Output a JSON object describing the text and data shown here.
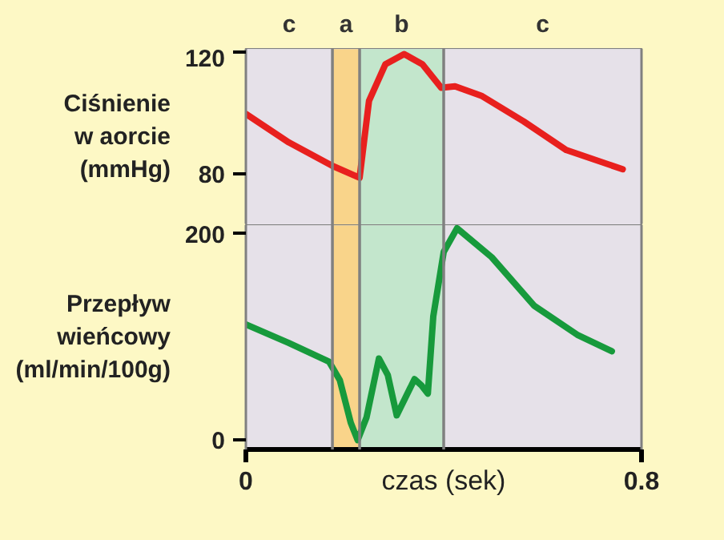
{
  "chart_data": [
    {
      "type": "line",
      "ylabel": "Ciśnienie\nw aorcie\n(mmHg)",
      "xlim": [
        0,
        0.8
      ],
      "ylim": [
        63,
        121
      ],
      "yticks": [
        80,
        120
      ],
      "tick_labels": "y",
      "series": [
        {
          "color": "#e8201e",
          "x": [
            0,
            0.087,
            0.175,
            0.23,
            0.249,
            0.282,
            0.32,
            0.357,
            0.395,
            0.423,
            0.476,
            0.562,
            0.648,
            0.762
          ],
          "values": [
            99.6,
            90.2,
            82.5,
            78.6,
            103.9,
            115.9,
            119.3,
            115.9,
            108.2,
            108.7,
            105.6,
            97.1,
            87.7,
            81.4
          ]
        }
      ],
      "bands": [
        {
          "axis": "x",
          "from": 0,
          "to": 0.175,
          "label": "c",
          "color": "#e6e1e9"
        },
        {
          "axis": "x",
          "from": 0.175,
          "to": 0.23,
          "label": "a",
          "color": "#f9d48a"
        },
        {
          "axis": "x",
          "from": 0.23,
          "to": 0.4,
          "label": "b",
          "color": "#c3e6cc"
        },
        {
          "axis": "x",
          "from": 0.4,
          "to": 0.8,
          "label": "c",
          "color": "#e6e1e9"
        }
      ]
    },
    {
      "type": "line",
      "ylabel": "Przepływ\nwieńcowy\n(ml/min/100g)",
      "xlabel": "czas (sek)",
      "xlim": [
        0,
        0.8
      ],
      "xticks": [
        0,
        0.8
      ],
      "ylim": [
        -9,
        208
      ],
      "yticks": [
        0,
        200
      ],
      "series": [
        {
          "color": "#179a3c",
          "x": [
            0,
            0.087,
            0.168,
            0.19,
            0.212,
            0.226,
            0.244,
            0.269,
            0.287,
            0.305,
            0.341,
            0.355,
            0.368,
            0.379,
            0.4,
            0.427,
            0.497,
            0.583,
            0.67,
            0.74
          ],
          "values": [
            112,
            94,
            76,
            58,
            17,
            0,
            22,
            79,
            63,
            24,
            59,
            53,
            45,
            120,
            182,
            205,
            177,
            130,
            102,
            86
          ]
        }
      ],
      "bands": [
        {
          "axis": "x",
          "from": 0,
          "to": 0.175,
          "color": "#e6e1e9"
        },
        {
          "axis": "x",
          "from": 0.175,
          "to": 0.23,
          "color": "#f9d48a"
        },
        {
          "axis": "x",
          "from": 0.23,
          "to": 0.4,
          "color": "#c3e6cc"
        },
        {
          "axis": "x",
          "from": 0.4,
          "to": 0.8,
          "color": "#e6e1e9"
        }
      ]
    }
  ]
}
